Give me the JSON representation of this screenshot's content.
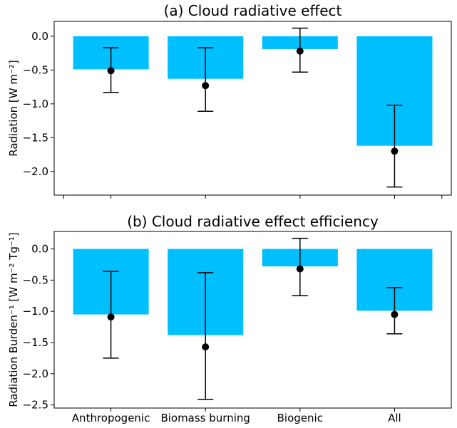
{
  "chart_data": [
    {
      "type": "bar",
      "title": "(a) Cloud radiative effect",
      "ylabel": "Radiation [W m⁻²]",
      "categories": [
        "Anthropogenic",
        "Biomass burning",
        "Biogenic",
        "All"
      ],
      "values": [
        -0.49,
        -0.63,
        -0.19,
        -1.62
      ],
      "points": [
        -0.51,
        -0.73,
        -0.22,
        -1.7
      ],
      "error_low": [
        -0.83,
        -1.11,
        -0.53,
        -2.23
      ],
      "error_high": [
        -0.17,
        -0.17,
        0.12,
        -1.02
      ],
      "ylim": [
        -2.35,
        0.22
      ],
      "yticks": [
        0.0,
        -0.5,
        -1.0,
        -1.5,
        -2.0
      ],
      "ytick_labels": [
        "0.0",
        "−0.5",
        "−1.0",
        "−1.5",
        "−2.0"
      ],
      "show_xtick_labels": false,
      "grid": false,
      "bar_color": "#00bfff",
      "point_color": "#000000"
    },
    {
      "type": "bar",
      "title": "(b) Cloud radiative effect efficiency",
      "ylabel": "Radiation Burden⁻¹ [W m⁻² Tg⁻¹]",
      "categories": [
        "Anthropogenic",
        "Biomass burning",
        "Biogenic",
        "All"
      ],
      "values": [
        -1.05,
        -1.38,
        -0.28,
        -0.99
      ],
      "points": [
        -1.09,
        -1.57,
        -0.32,
        -1.05
      ],
      "error_low": [
        -1.75,
        -2.41,
        -0.75,
        -1.36
      ],
      "error_high": [
        -0.36,
        -0.38,
        0.17,
        -0.62
      ],
      "ylim": [
        -2.55,
        0.28
      ],
      "yticks": [
        0.0,
        -0.5,
        -1.0,
        -1.5,
        -2.0,
        -2.5
      ],
      "ytick_labels": [
        "0.0",
        "−0.5",
        "−1.0",
        "−1.5",
        "−2.0",
        "−2.5"
      ],
      "show_xtick_labels": true,
      "grid": false,
      "bar_color": "#00bfff",
      "point_color": "#000000"
    }
  ]
}
